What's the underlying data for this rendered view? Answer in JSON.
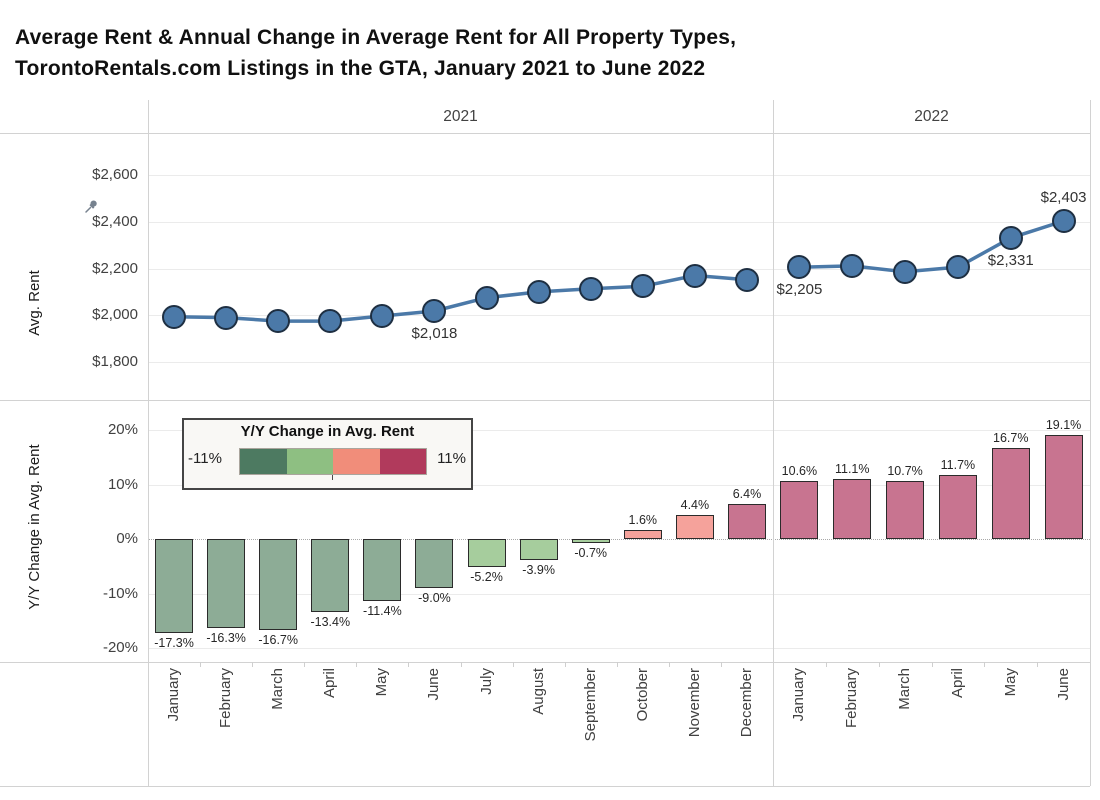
{
  "title": {
    "line1": "Average Rent & Annual Change in Average Rent for All Property Types,",
    "line2": "TorontoRentals.com Listings in the GTA, January 2021 to June 2022"
  },
  "year_headers": [
    "2021",
    "2022"
  ],
  "colors": {
    "line": "#4b79a8",
    "point_fill": "#4b79a8",
    "point_stroke": "#1e2f42",
    "grid": "#ebebeb",
    "border": "#d2d2d2",
    "bar_outline": "#2b2b2b",
    "bar_green_mid": "#8dac96",
    "bar_green_light": "#a6cd9d",
    "bar_salmon": "#f5a29b",
    "bar_rose": "#c87490",
    "legend_background": "#f9f8f5"
  },
  "legend": {
    "title": "Y/Y Change in Avg. Rent",
    "min_label": "-11%",
    "max_label": "11%",
    "ramp_colors": [
      "#4d7a61",
      "#8ebf82",
      "#f18d7a",
      "#b13a5c"
    ]
  },
  "icons": {
    "pin": "pushpin"
  },
  "chart_data": [
    {
      "type": "line",
      "name": "Average Rent",
      "ylabel": "Avg. Rent",
      "ylim": [
        1700,
        2700
      ],
      "grid": true,
      "yticks": [
        {
          "label": "$2,600",
          "value": 2600
        },
        {
          "label": "$2,400",
          "value": 2400
        },
        {
          "label": "$2,200",
          "value": 2200
        },
        {
          "label": "$2,000",
          "value": 2000
        },
        {
          "label": "$1,800",
          "value": 1800
        }
      ],
      "panels": [
        {
          "year": "2021",
          "categories": [
            "January",
            "February",
            "March",
            "April",
            "May",
            "June",
            "July",
            "August",
            "September",
            "October",
            "November",
            "December"
          ],
          "values": [
            1994,
            1990,
            1975,
            1975,
            1997,
            2018,
            2075,
            2100,
            2113,
            2124,
            2170,
            2152
          ],
          "point_labels": [
            {
              "index": 5,
              "text": "$2,018",
              "position": "below"
            }
          ]
        },
        {
          "year": "2022",
          "categories": [
            "January",
            "February",
            "March",
            "April",
            "May",
            "June"
          ],
          "values": [
            2205,
            2211,
            2186,
            2206,
            2331,
            2403
          ],
          "point_labels": [
            {
              "index": 0,
              "text": "$2,205",
              "position": "below"
            },
            {
              "index": 4,
              "text": "$2,331",
              "position": "below"
            },
            {
              "index": 5,
              "text": "$2,403",
              "position": "above"
            }
          ]
        }
      ]
    },
    {
      "type": "bar",
      "name": "Y/Y Change in Avg. Rent",
      "ylabel": "Y/Y Change in Avg. Rent",
      "ylim": [
        -22,
        22
      ],
      "grid": true,
      "yticks": [
        {
          "label": "20%",
          "value": 20
        },
        {
          "label": "10%",
          "value": 10
        },
        {
          "label": "0%",
          "value": 0
        },
        {
          "label": "-10%",
          "value": -10
        },
        {
          "label": "-20%",
          "value": -20
        }
      ],
      "panels": [
        {
          "year": "2021",
          "categories": [
            "January",
            "February",
            "March",
            "April",
            "May",
            "June",
            "July",
            "August",
            "September",
            "October",
            "November",
            "December"
          ],
          "values": [
            -17.3,
            -16.3,
            -16.7,
            -13.4,
            -11.4,
            -9.0,
            -5.2,
            -3.9,
            -0.7,
            1.6,
            4.4,
            6.4
          ],
          "labels": [
            "-17.3%",
            "-16.3%",
            "-16.7%",
            "-13.4%",
            "-11.4%",
            "-9.0%",
            "-5.2%",
            "-3.9%",
            "-0.7%",
            "1.6%",
            "4.4%",
            "6.4%"
          ]
        },
        {
          "year": "2022",
          "categories": [
            "January",
            "February",
            "March",
            "April",
            "May",
            "June"
          ],
          "values": [
            10.6,
            11.1,
            10.7,
            11.7,
            16.7,
            19.1
          ],
          "labels": [
            "10.6%",
            "11.1%",
            "10.7%",
            "11.7%",
            "16.7%",
            "19.1%"
          ]
        }
      ]
    }
  ]
}
